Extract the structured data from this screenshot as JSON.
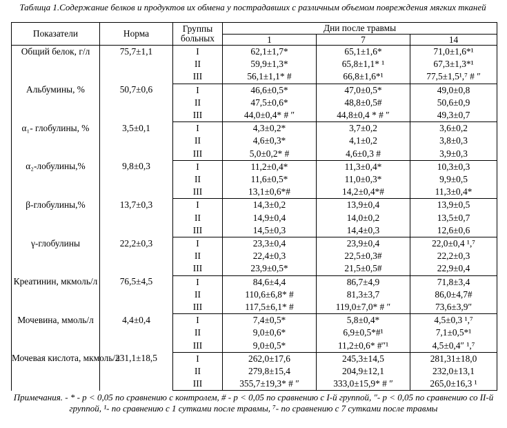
{
  "caption": "Таблица 1.Содержание белков и продуктов их обмена у пострадавших с различным объемом повреждения мягких тканей",
  "headers": {
    "indicator": "Показатели",
    "norm": "Норма",
    "groups": "Группы больных",
    "days": "Дни после травмы",
    "day1": "1",
    "day7": "7",
    "day14": "14"
  },
  "indicators": [
    {
      "name": "Общий белок, г/л",
      "norm": "75,7±1,1",
      "rows": [
        {
          "group": "I",
          "d1": "62,1±1,7*",
          "d7": "65,1±1,6*",
          "d14": "71,0±1,6*¹"
        },
        {
          "group": "II",
          "d1": "59,9±1,3*",
          "d7": "65,8±1,1* ¹",
          "d14": "67,3±1,3*¹"
        },
        {
          "group": "III",
          "d1": "56,1±1,1* #",
          "d7": "66,8±1,6*¹",
          "d14": "77,5±1,5¹,⁷ # ″"
        }
      ]
    },
    {
      "name": "Альбумины, %",
      "norm": "50,7±0,6",
      "rows": [
        {
          "group": "I",
          "d1": "46,6±0,5*",
          "d7": "47,0±0,5*",
          "d14": "49,0±0,8"
        },
        {
          "group": "II",
          "d1": "47,5±0,6*",
          "d7": "48,8±0,5#",
          "d14": "50,6±0,9"
        },
        {
          "group": "III",
          "d1": "44,0±0,4* # ″",
          "d7": "44,8±0,4 * # ″",
          "d14": "49,3±0,7"
        }
      ]
    },
    {
      "name": "α₁- глобулины, %",
      "norm": "3,5±0,1",
      "rows": [
        {
          "group": "I",
          "d1": "4,3±0,2*",
          "d7": "3,7±0,2",
          "d14": "3,6±0,2"
        },
        {
          "group": "II",
          "d1": "4,6±0,3*",
          "d7": "4,1±0,2",
          "d14": "3,8±0,3"
        },
        {
          "group": "III",
          "d1": "5,0±0,2* #",
          "d7": "4,6±0,3 #",
          "d14": "3,9±0,3"
        }
      ]
    },
    {
      "name": "α₂-лобулины,%",
      "norm": "9,8±0,3",
      "rows": [
        {
          "group": "I",
          "d1": "11,2±0,4*",
          "d7": "11,3±0,4*",
          "d14": "10,3±0,3"
        },
        {
          "group": "II",
          "d1": "11,6±0,5*",
          "d7": "11,0±0,3*",
          "d14": "9,9±0,5"
        },
        {
          "group": "III",
          "d1": "13,1±0,6*#",
          "d7": "14,2±0,4*#",
          "d14": "11,3±0,4*"
        }
      ]
    },
    {
      "name": "β-глобулины,%",
      "norm": "13,7±0,3",
      "rows": [
        {
          "group": "I",
          "d1": "14,3±0,2",
          "d7": "13,9±0,4",
          "d14": "13,9±0,5"
        },
        {
          "group": "II",
          "d1": "14,9±0,4",
          "d7": "14,0±0,2",
          "d14": "13,5±0,7"
        },
        {
          "group": "III",
          "d1": "14,5±0,3",
          "d7": "14,4±0,3",
          "d14": "12,6±0,6"
        }
      ]
    },
    {
      "name": "γ-глобулины",
      "norm": "22,2±0,3",
      "rows": [
        {
          "group": "I",
          "d1": "23,3±0,4",
          "d7": "23,9±0,4",
          "d14": "22,0±0,4 ¹,⁷"
        },
        {
          "group": "II",
          "d1": "22,4±0,3",
          "d7": "22,5±0,3#",
          "d14": "22,2±0,3"
        },
        {
          "group": "III",
          "d1": "23,9±0,5*",
          "d7": "21,5±0,5#",
          "d14": "22,9±0,4"
        }
      ]
    },
    {
      "name": "Креатинин, мкмоль/л",
      "norm": "76,5±4,5",
      "rows": [
        {
          "group": "I",
          "d1": "84,6±4,4",
          "d7": "86,7±4,9",
          "d14": "71,8±3,4"
        },
        {
          "group": "II",
          "d1": "110,6±6,8* #",
          "d7": "81,3±3,7",
          "d14": "86,0±4,7#"
        },
        {
          "group": "III",
          "d1": "117,5±6,1* #",
          "d7": "119,0±7,0* # ″",
          "d14": "73,6±3,9″"
        }
      ]
    },
    {
      "name": "Мочевина, ммоль/л",
      "norm": "4,4±0,4",
      "rows": [
        {
          "group": "I",
          "d1": "7,4±0,5*",
          "d7": "5,8±0,4*",
          "d14": "4,5±0,3 ¹,⁷"
        },
        {
          "group": "II",
          "d1": "9,0±0,6*",
          "d7": "6,9±0,5*#¹",
          "d14": "7,1±0,5*¹"
        },
        {
          "group": "III",
          "d1": "9,0±0,5*",
          "d7": "11,2±0,6* #″¹",
          "d14": "4,5±0,4″ ¹,⁷"
        }
      ]
    },
    {
      "name": "Мочевая кислота, мкмоль/л",
      "norm": "231,1±18,5",
      "rows": [
        {
          "group": "I",
          "d1": "262,0±17,6",
          "d7": "245,3±14,5",
          "d14": "281,31±18,0"
        },
        {
          "group": "II",
          "d1": "279,8±15,4",
          "d7": "204,9±12,1",
          "d14": "232,0±13,1"
        },
        {
          "group": "III",
          "d1": "355,7±19,3* # ″",
          "d7": "333,0±15,9* # ″",
          "d14": "265,0±16,3 ¹"
        }
      ]
    }
  ],
  "note": "Примечания. - * - р < 0,05 по сравнению с контролем, # - р < 0,05 по сравнению с I-й группой, ″- р < 0,05 по сравнению со II-й группой, ¹- по сравнению с 1 сутками после травмы, ⁷- по сравнению с 7 сутками после травмы"
}
